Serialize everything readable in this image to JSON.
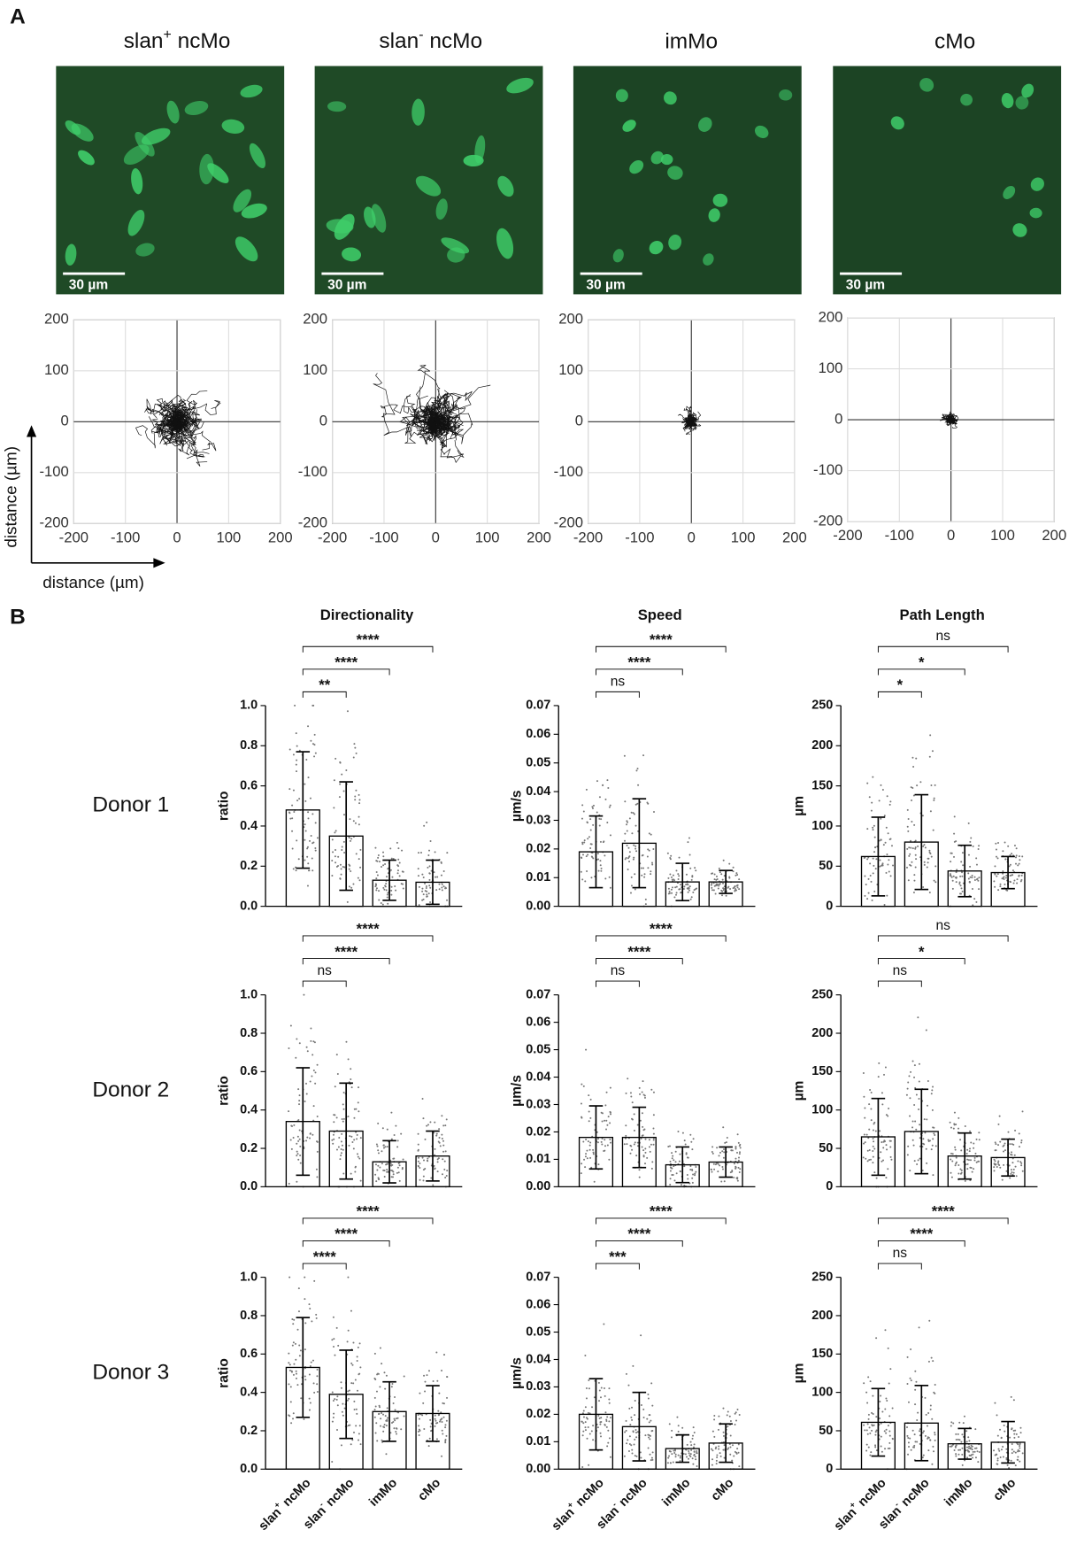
{
  "panel_labels": [
    "A",
    "B"
  ],
  "images": [
    {
      "title": "slan+ ncMo",
      "scale_bar": "30 µm"
    },
    {
      "title": "slan- ncMo",
      "scale_bar": "30 µm"
    },
    {
      "title": "imMo",
      "scale_bar": "30 µm"
    },
    {
      "title": "cMo",
      "scale_bar": "30 µm"
    }
  ],
  "axis_labels": {
    "x": "distance (µm)",
    "y": "distance (µm)"
  },
  "chart_data": [
    {
      "type": "tracks",
      "xlim": [
        -200,
        200
      ],
      "ylim": [
        -200,
        200
      ],
      "xticks": [
        -200,
        -100,
        0,
        100,
        200
      ],
      "yticks": [
        -200,
        -100,
        0,
        100,
        200
      ]
    },
    {
      "type": "tracks",
      "xlim": [
        -200,
        200
      ],
      "ylim": [
        -200,
        200
      ],
      "xticks": [
        -200,
        -100,
        0,
        100,
        200
      ],
      "yticks": [
        -200,
        -100,
        0,
        100,
        200
      ]
    },
    {
      "type": "tracks",
      "xlim": [
        -200,
        200
      ],
      "ylim": [
        -200,
        200
      ],
      "xticks": [
        -200,
        -100,
        0,
        100,
        200
      ],
      "yticks": [
        -200,
        -100,
        0,
        100,
        200
      ]
    },
    {
      "type": "tracks",
      "xlim": [
        -200,
        200
      ],
      "ylim": [
        -200,
        200
      ],
      "xticks": [
        -200,
        -100,
        0,
        100,
        200
      ],
      "yticks": [
        -200,
        -100,
        0,
        100,
        200
      ]
    },
    {
      "type": "bar",
      "title": "Directionality",
      "row_label": "Donor 1",
      "ylabel": "ratio",
      "values": [
        0.48,
        0.35,
        0.13,
        0.12
      ],
      "errors": [
        0.29,
        0.27,
        0.1,
        0.11
      ],
      "ylim": [
        0,
        1
      ],
      "yticks": [
        {
          "value": 0,
          "label": "0.0"
        },
        0.2,
        0.4,
        0.6,
        0.8,
        {
          "value": 1,
          "label": "1.0"
        }
      ],
      "comparisons": [
        {
          "from": 0,
          "to": 1,
          "label": "**"
        },
        {
          "from": 0,
          "to": 2,
          "label": "****"
        },
        {
          "from": 0,
          "to": 3,
          "label": "****"
        }
      ]
    },
    {
      "type": "bar",
      "title": "Speed",
      "ylabel": "µm/s",
      "values": [
        0.019,
        0.022,
        0.0085,
        0.0085
      ],
      "errors": [
        0.0125,
        0.0155,
        0.0065,
        0.004
      ],
      "ylim": [
        0,
        0.07
      ],
      "yticks": [
        {
          "value": 0,
          "label": "0.00"
        },
        0.01,
        0.02,
        0.03,
        0.04,
        0.05,
        0.06,
        0.07
      ],
      "comparisons": [
        {
          "from": 0,
          "to": 1,
          "label": "ns"
        },
        {
          "from": 0,
          "to": 2,
          "label": "****"
        },
        {
          "from": 0,
          "to": 3,
          "label": "****"
        }
      ]
    },
    {
      "type": "bar",
      "title": "Path Length",
      "ylabel": "µm",
      "values": [
        62,
        80,
        44,
        42
      ],
      "errors": [
        49,
        59,
        32,
        20
      ],
      "ylim": [
        0,
        250
      ],
      "yticks": [
        0,
        50,
        100,
        150,
        200,
        250
      ],
      "comparisons": [
        {
          "from": 0,
          "to": 1,
          "label": "*"
        },
        {
          "from": 0,
          "to": 2,
          "label": "*"
        },
        {
          "from": 0,
          "to": 3,
          "label": "ns"
        }
      ]
    },
    {
      "type": "bar",
      "row_label": "Donor 2",
      "ylabel": "ratio",
      "values": [
        0.34,
        0.29,
        0.13,
        0.16
      ],
      "errors": [
        0.28,
        0.25,
        0.11,
        0.13
      ],
      "ylim": [
        0,
        1
      ],
      "yticks": [
        {
          "value": 0,
          "label": "0.0"
        },
        0.2,
        0.4,
        0.6,
        0.8,
        {
          "value": 1,
          "label": "1.0"
        }
      ],
      "comparisons": [
        {
          "from": 0,
          "to": 1,
          "label": "ns"
        },
        {
          "from": 0,
          "to": 2,
          "label": "****"
        },
        {
          "from": 0,
          "to": 3,
          "label": "****"
        }
      ]
    },
    {
      "type": "bar",
      "ylabel": "µm/s",
      "values": [
        0.018,
        0.018,
        0.008,
        0.009
      ],
      "errors": [
        0.0115,
        0.011,
        0.0065,
        0.0055
      ],
      "ylim": [
        0,
        0.07
      ],
      "yticks": [
        {
          "value": 0,
          "label": "0.00"
        },
        0.01,
        0.02,
        0.03,
        0.04,
        0.05,
        0.06,
        0.07
      ],
      "comparisons": [
        {
          "from": 0,
          "to": 1,
          "label": "ns"
        },
        {
          "from": 0,
          "to": 2,
          "label": "****"
        },
        {
          "from": 0,
          "to": 3,
          "label": "****"
        }
      ]
    },
    {
      "type": "bar",
      "ylabel": "µm",
      "values": [
        65,
        72,
        40,
        38
      ],
      "errors": [
        50,
        55,
        30,
        24
      ],
      "ylim": [
        0,
        250
      ],
      "yticks": [
        0,
        50,
        100,
        150,
        200,
        250
      ],
      "comparisons": [
        {
          "from": 0,
          "to": 1,
          "label": "ns"
        },
        {
          "from": 0,
          "to": 2,
          "label": "*"
        },
        {
          "from": 0,
          "to": 3,
          "label": "ns"
        }
      ]
    },
    {
      "type": "bar",
      "row_label": "Donor 3",
      "ylabel": "ratio",
      "categories": [
        "slan+ ncMo",
        "slan- ncMo",
        "imMo",
        "cMo"
      ],
      "values": [
        0.53,
        0.39,
        0.3,
        0.29
      ],
      "errors": [
        0.26,
        0.23,
        0.155,
        0.145
      ],
      "ylim": [
        0,
        1
      ],
      "yticks": [
        {
          "value": 0,
          "label": "0.0"
        },
        0.2,
        0.4,
        0.6,
        0.8,
        {
          "value": 1,
          "label": "1.0"
        }
      ],
      "comparisons": [
        {
          "from": 0,
          "to": 1,
          "label": "****"
        },
        {
          "from": 0,
          "to": 2,
          "label": "****"
        },
        {
          "from": 0,
          "to": 3,
          "label": "****"
        }
      ]
    },
    {
      "type": "bar",
      "ylabel": "µm/s",
      "categories": [
        "slan+ ncMo",
        "slan- ncMo",
        "imMo",
        "cMo"
      ],
      "values": [
        0.02,
        0.0155,
        0.0075,
        0.0095
      ],
      "errors": [
        0.013,
        0.0125,
        0.005,
        0.007
      ],
      "ylim": [
        0,
        0.07
      ],
      "yticks": [
        {
          "value": 0,
          "label": "0.00"
        },
        0.01,
        0.02,
        0.03,
        0.04,
        0.05,
        0.06,
        0.07
      ],
      "comparisons": [
        {
          "from": 0,
          "to": 1,
          "label": "***"
        },
        {
          "from": 0,
          "to": 2,
          "label": "****"
        },
        {
          "from": 0,
          "to": 3,
          "label": "****"
        }
      ]
    },
    {
      "type": "bar",
      "ylabel": "µm",
      "categories": [
        "slan+ ncMo",
        "slan- ncMo",
        "imMo",
        "cMo"
      ],
      "values": [
        61,
        60,
        33,
        35
      ],
      "errors": [
        44,
        49,
        20,
        27
      ],
      "ylim": [
        0,
        250
      ],
      "yticks": [
        0,
        50,
        100,
        150,
        200,
        250
      ],
      "comparisons": [
        {
          "from": 0,
          "to": 1,
          "label": "ns"
        },
        {
          "from": 0,
          "to": 2,
          "label": "****"
        },
        {
          "from": 0,
          "to": 3,
          "label": "****"
        }
      ]
    }
  ]
}
